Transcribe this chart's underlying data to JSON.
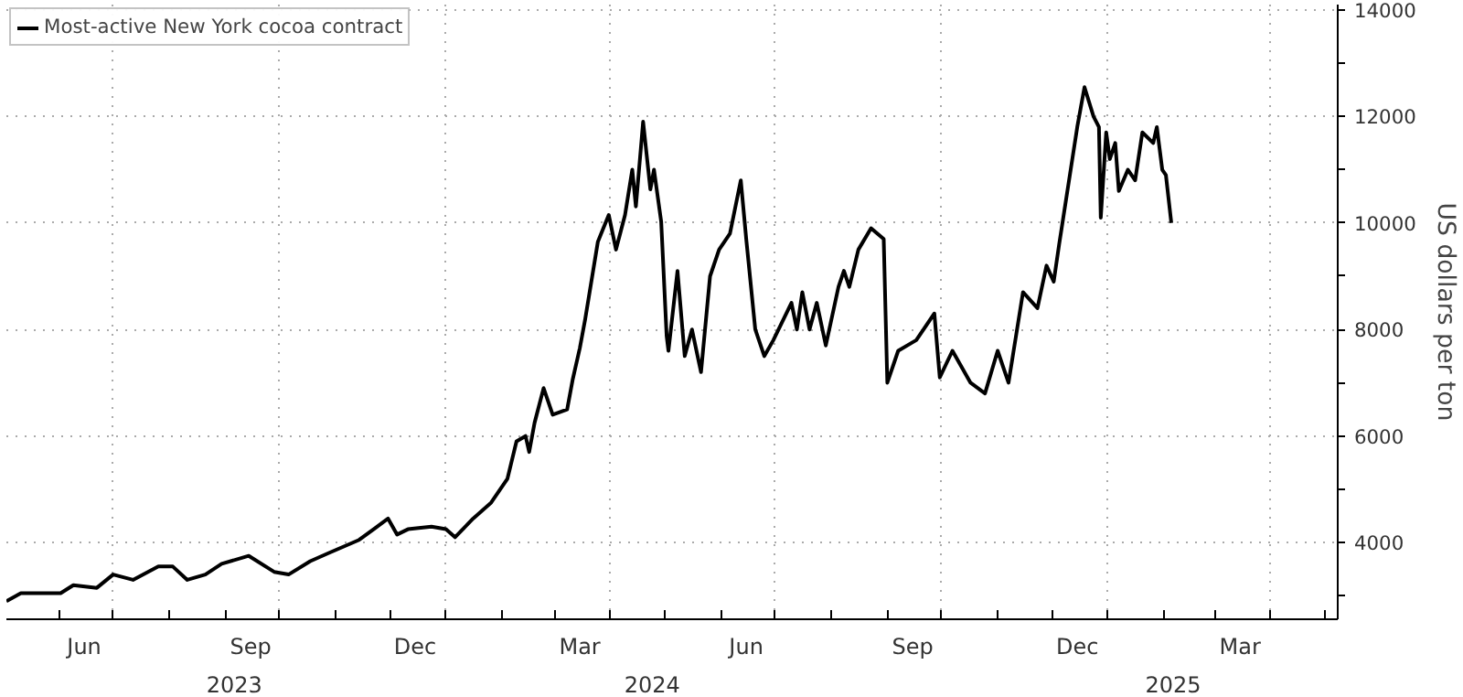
{
  "chart_data": {
    "type": "line",
    "y2label": "US dollars per ton",
    "x": [
      "2023-05-03",
      "2023-05-11",
      "2023-05-21",
      "2023-06-02",
      "2023-06-09",
      "2023-06-22",
      "2023-07-01",
      "2023-07-12",
      "2023-07-26",
      "2023-08-03",
      "2023-08-11",
      "2023-08-21",
      "2023-08-30",
      "2023-09-14",
      "2023-09-28",
      "2023-10-06",
      "2023-10-18",
      "2023-10-28",
      "2023-11-14",
      "2023-11-22",
      "2023-11-30",
      "2023-12-05",
      "2023-12-11",
      "2023-12-24",
      "2024-01-01",
      "2024-01-06",
      "2024-01-16",
      "2024-01-26",
      "2024-02-04",
      "2024-02-09",
      "2024-02-14",
      "2024-02-16",
      "2024-02-19",
      "2024-02-24",
      "2024-02-29",
      "2024-03-08",
      "2024-03-11",
      "2024-03-15",
      "2024-03-18",
      "2024-03-25",
      "2024-03-31",
      "2024-04-04",
      "2024-04-09",
      "2024-04-13",
      "2024-04-15",
      "2024-04-19",
      "2024-04-23",
      "2024-04-25",
      "2024-04-29",
      "2024-05-02",
      "2024-05-03",
      "2024-05-08",
      "2024-05-12",
      "2024-05-16",
      "2024-05-21",
      "2024-05-26",
      "2024-05-31",
      "2024-06-06",
      "2024-06-12",
      "2024-06-15",
      "2024-06-20",
      "2024-06-25",
      "2024-06-30",
      "2024-07-10",
      "2024-07-13",
      "2024-07-16",
      "2024-07-20",
      "2024-07-24",
      "2024-07-29",
      "2024-08-05",
      "2024-08-08",
      "2024-08-11",
      "2024-08-16",
      "2024-08-23",
      "2024-08-30",
      "2024-09-01",
      "2024-09-07",
      "2024-09-17",
      "2024-09-27",
      "2024-09-30",
      "2024-10-07",
      "2024-10-17",
      "2024-10-25",
      "2024-11-01",
      "2024-11-07",
      "2024-11-15",
      "2024-11-23",
      "2024-11-28",
      "2024-12-02",
      "2024-12-05",
      "2024-12-10",
      "2024-12-15",
      "2024-12-19",
      "2024-12-24",
      "2024-12-27",
      "2024-12-28",
      "2024-12-31",
      "2025-01-02",
      "2025-01-05",
      "2025-01-07",
      "2025-01-12",
      "2025-01-16",
      "2025-01-20",
      "2025-01-26",
      "2025-01-28",
      "2025-01-31",
      "2025-02-02",
      "2025-02-05"
    ],
    "series": [
      {
        "name": "Most-active New York cocoa contract",
        "color": "#000000",
        "values": [
          2900,
          3050,
          3050,
          3050,
          3200,
          3150,
          3400,
          3300,
          3550,
          3550,
          3300,
          3400,
          3600,
          3750,
          3450,
          3400,
          3650,
          3800,
          4050,
          4250,
          4450,
          4150,
          4250,
          4300,
          4250,
          4100,
          4450,
          4750,
          5200,
          5900,
          6000,
          5700,
          6250,
          6900,
          6400,
          6500,
          7050,
          7650,
          8200,
          9650,
          10150,
          9500,
          10150,
          11000,
          10310,
          11900,
          10630,
          11000,
          10020,
          7880,
          7600,
          9100,
          7500,
          8000,
          7200,
          9000,
          9500,
          9800,
          10800,
          9700,
          8000,
          7500,
          7800,
          8500,
          8000,
          8700,
          8000,
          8500,
          7700,
          8800,
          9100,
          8800,
          9500,
          9900,
          9700,
          7000,
          7600,
          7800,
          8300,
          7100,
          7600,
          7000,
          6800,
          7600,
          7000,
          8700,
          8400,
          9200,
          8900,
          9600,
          10700,
          11800,
          12550,
          12000,
          11800,
          10100,
          11700,
          11200,
          11500,
          10600,
          11000,
          10800,
          11700,
          11500,
          11800,
          11000,
          10900,
          10000
        ],
        "axis": "y2"
      }
    ],
    "xlim": [
      "2023-05-03",
      "2025-05-08"
    ],
    "xticks": [
      {
        "value": "2023-06-01",
        "label": null
      },
      {
        "value": "2023-06-15",
        "label": "Jun"
      },
      {
        "value": "2023-07-01",
        "label": null
      },
      {
        "value": "2023-08-01",
        "label": null
      },
      {
        "value": "2023-09-01",
        "label": null
      },
      {
        "value": "2023-09-15",
        "label": "Sep"
      },
      {
        "value": "2023-10-01",
        "label": null
      },
      {
        "value": "2023-11-01",
        "label": null
      },
      {
        "value": "2023-12-01",
        "label": null
      },
      {
        "value": "2023-12-15",
        "label": "Dec"
      },
      {
        "value": "2024-01-01",
        "label": null
      },
      {
        "value": "2024-02-01",
        "label": null
      },
      {
        "value": "2024-03-01",
        "label": null
      },
      {
        "value": "2024-03-15",
        "label": "Mar"
      },
      {
        "value": "2024-04-01",
        "label": null
      },
      {
        "value": "2024-05-01",
        "label": null
      },
      {
        "value": "2024-06-01",
        "label": null
      },
      {
        "value": "2024-06-15",
        "label": "Jun"
      },
      {
        "value": "2024-07-01",
        "label": null
      },
      {
        "value": "2024-08-01",
        "label": null
      },
      {
        "value": "2024-09-01",
        "label": null
      },
      {
        "value": "2024-09-15",
        "label": "Sep"
      },
      {
        "value": "2024-10-01",
        "label": null
      },
      {
        "value": "2024-11-01",
        "label": null
      },
      {
        "value": "2024-12-01",
        "label": null
      },
      {
        "value": "2024-12-15",
        "label": "Dec"
      },
      {
        "value": "2025-01-01",
        "label": null
      },
      {
        "value": "2025-02-01",
        "label": null
      },
      {
        "value": "2025-03-01",
        "label": null
      },
      {
        "value": "2025-03-15",
        "label": "Mar"
      },
      {
        "value": "2025-04-01",
        "label": null
      },
      {
        "value": "2025-05-01",
        "label": null
      }
    ],
    "x2lim": [
      "2023-05-03",
      "2025-05-08"
    ],
    "x2ticks": [
      {
        "value": "2023-09-06",
        "label": "2023"
      },
      {
        "value": "2024-04-24",
        "label": "2024"
      },
      {
        "value": "2025-02-06",
        "label": "2025"
      }
    ],
    "y2lim": [
      2560,
      14100
    ],
    "y2ticks": [
      {
        "value": 3000,
        "label": null
      },
      4000,
      {
        "value": 5000,
        "label": null
      },
      6000,
      {
        "value": 7000,
        "label": null
      },
      8000,
      {
        "value": 9000,
        "label": null
      },
      10000,
      {
        "value": 11000,
        "label": null
      },
      12000,
      {
        "value": 13000,
        "label": null
      },
      14000
    ],
    "grid": true,
    "legend": "top left",
    "line_style": "solid",
    "marker": "none"
  }
}
